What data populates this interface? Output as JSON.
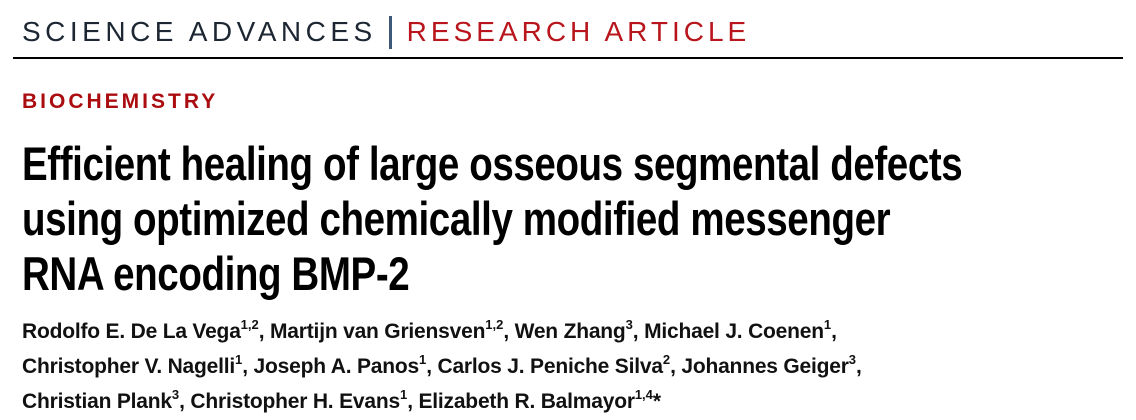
{
  "colors": {
    "journal_ink": "#1d2733",
    "research_red": "#b8151c",
    "biochem_red": "#ab0c10",
    "separator_blue": "#3c5a78",
    "rule_black": "#000000",
    "title_ink": "#000000",
    "author_ink": "#111111"
  },
  "header": {
    "journal": "SCIENCE ADVANCES",
    "article_type": "RESEARCH ARTICLE",
    "divider_icon": "vertical-bar"
  },
  "section_label": "BIOCHEMISTRY",
  "title_lines": [
    "Efficient healing of large osseous segmental defects",
    "using optimized chemically modified messenger",
    "RNA encoding BMP-2"
  ],
  "title_full": "Efficient healing of large osseous segmental defects using optimized chemically modified messenger RNA encoding BMP-2",
  "authors_lines": [
    [
      {
        "t": "Rodolfo E. De La Vega"
      },
      {
        "t": "1,2",
        "sup": true
      },
      {
        "t": ", Martijn van Griensven"
      },
      {
        "t": "1,2",
        "sup": true
      },
      {
        "t": ", Wen Zhang"
      },
      {
        "t": "3",
        "sup": true
      },
      {
        "t": ", Michael J. Coenen"
      },
      {
        "t": "1",
        "sup": true
      },
      {
        "t": ","
      }
    ],
    [
      {
        "t": "Christopher V. Nagelli"
      },
      {
        "t": "1",
        "sup": true
      },
      {
        "t": ", Joseph A. Panos"
      },
      {
        "t": "1",
        "sup": true
      },
      {
        "t": ", Carlos J. Peniche Silva"
      },
      {
        "t": "2",
        "sup": true
      },
      {
        "t": ", Johannes Geiger"
      },
      {
        "t": "3",
        "sup": true
      },
      {
        "t": ","
      }
    ],
    [
      {
        "t": "Christian Plank"
      },
      {
        "t": "3",
        "sup": true
      },
      {
        "t": ", Christopher H. Evans"
      },
      {
        "t": "1",
        "sup": true
      },
      {
        "t": ", Elizabeth R. Balmayor"
      },
      {
        "t": "1,4",
        "sup": true
      },
      {
        "t": "*"
      }
    ]
  ]
}
